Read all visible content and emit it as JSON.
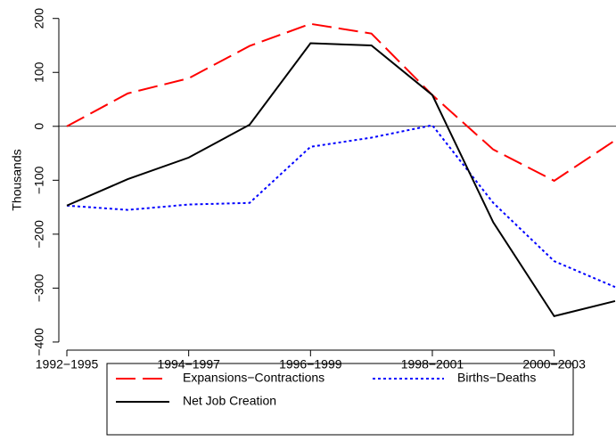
{
  "chart_data": {
    "type": "line",
    "y_label": "Thousands",
    "categories": [
      "1992−1995",
      null,
      "1994−1997",
      null,
      "1996−1999",
      null,
      "1998−2001",
      null,
      "2000−2003",
      null
    ],
    "series": [
      {
        "name": "Expansions−Contractions",
        "color": "#ff0000",
        "linestyle": "dashed",
        "values": [
          0,
          61,
          89,
          149,
          190,
          172,
          58,
          -43,
          -101,
          -26
        ]
      },
      {
        "name": "Births−Deaths",
        "color": "#0000ff",
        "linestyle": "dotted",
        "values": [
          -147,
          -155,
          -145,
          -142,
          -38,
          -21,
          2,
          -142,
          -250,
          -298
        ]
      },
      {
        "name": "Net Job Creation",
        "color": "#000000",
        "linestyle": "solid",
        "values": [
          -147,
          -98,
          -58,
          3,
          154,
          150,
          58,
          -178,
          -352,
          -324
        ]
      }
    ],
    "ylim": [
      -415,
      221
    ],
    "yticks": [
      {
        "value": -400,
        "label": "−400"
      },
      {
        "value": -300,
        "label": "−300"
      },
      {
        "value": -200,
        "label": "−200"
      },
      {
        "value": -100,
        "label": "−100"
      },
      0,
      100,
      200
    ],
    "reference_line": 0,
    "legend": "bottom"
  }
}
